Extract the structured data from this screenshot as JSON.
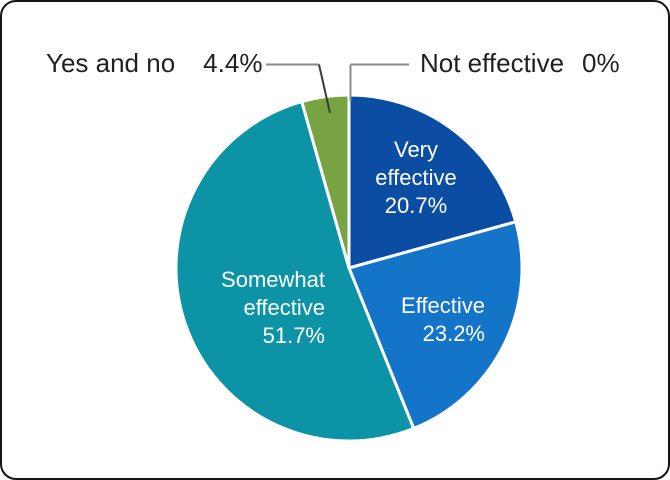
{
  "chart_data": {
    "type": "pie",
    "title": "",
    "direction": "clockwise",
    "start_angle_deg": 0,
    "legend_position": "none",
    "total": 100,
    "slices": [
      {
        "label": "Very effective",
        "value": 20.7,
        "display": "20.7%",
        "color": "#0b4da2",
        "label_placement": "inside"
      },
      {
        "label": "Effective",
        "value": 23.2,
        "display": "23.2%",
        "color": "#1374c8",
        "label_placement": "inside"
      },
      {
        "label": "Somewhat effective",
        "value": 51.7,
        "display": "51.7%",
        "color": "#0c93a6",
        "label_placement": "inside"
      },
      {
        "label": "Yes and no",
        "value": 4.4,
        "display": "4.4%",
        "color": "#77a342",
        "label_placement": "callout"
      },
      {
        "label": "Not effective",
        "value": 0,
        "display": "0%",
        "color": "#8a8a8a",
        "label_placement": "callout"
      }
    ]
  },
  "colors": {
    "label_text": "#231f20",
    "slice_text": "#ffffff",
    "separator": "#ffffff",
    "leader_line_gray": "#8a8a8a",
    "leader_line_dark": "#3e3a3b"
  }
}
